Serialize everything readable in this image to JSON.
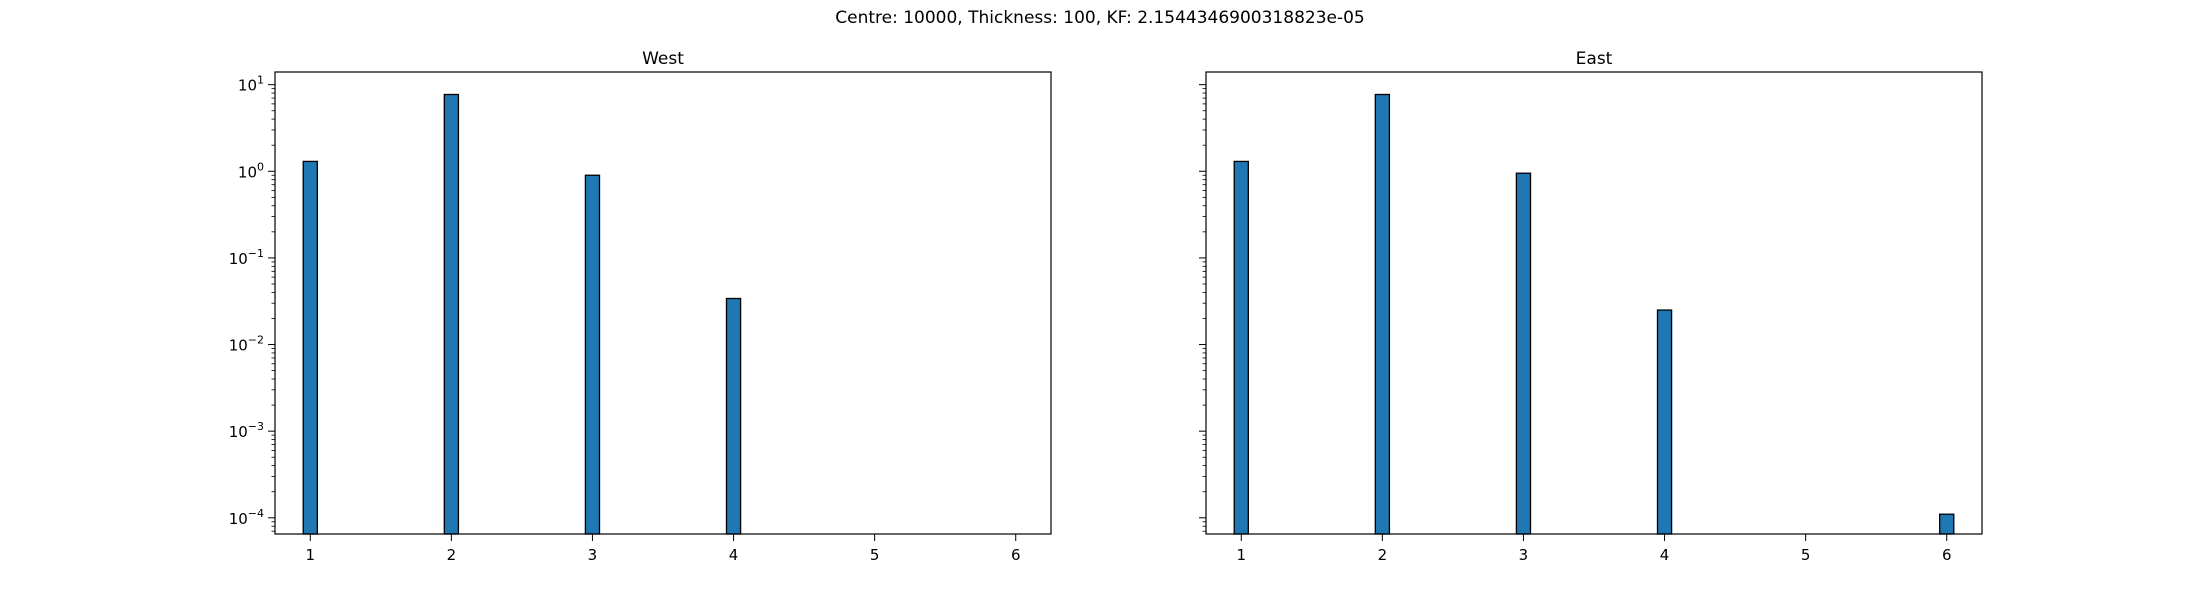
{
  "figure": {
    "suptitle": "Centre: 10000, Thickness: 100, KF: 2.1544346900318823e-05"
  },
  "chart_data": [
    {
      "type": "bar",
      "title": "West",
      "xlabel": "",
      "ylabel": "",
      "yscale": "log",
      "ylim": [
        6.5e-05,
        14
      ],
      "xlim": [
        0.75,
        6.25
      ],
      "xticks": [
        "1",
        "2",
        "3",
        "4",
        "5",
        "6"
      ],
      "yticks": [
        {
          "value": 0.0001,
          "base": "10",
          "exp": "−4"
        },
        {
          "value": 0.001,
          "base": "10",
          "exp": "−3"
        },
        {
          "value": 0.01,
          "base": "10",
          "exp": "−2"
        },
        {
          "value": 0.1,
          "base": "10",
          "exp": "−1"
        },
        {
          "value": 1,
          "base": "10",
          "exp": "0"
        },
        {
          "value": 10,
          "base": "10",
          "exp": "1"
        }
      ],
      "x": [
        1,
        2,
        3,
        4
      ],
      "values": [
        1.3,
        7.7,
        0.9,
        0.034
      ],
      "bar_width": 0.1,
      "color": "#1f77b4",
      "edgecolor": "#000000",
      "grid": false,
      "show_yticklabels": true
    },
    {
      "type": "bar",
      "title": "East",
      "xlabel": "",
      "ylabel": "",
      "yscale": "log",
      "ylim": [
        6.5e-05,
        14
      ],
      "xlim": [
        0.75,
        6.25
      ],
      "xticks": [
        "1",
        "2",
        "3",
        "4",
        "5",
        "6"
      ],
      "yticks": [
        {
          "value": 0.0001,
          "base": "10",
          "exp": "−4"
        },
        {
          "value": 0.001,
          "base": "10",
          "exp": "−3"
        },
        {
          "value": 0.01,
          "base": "10",
          "exp": "−2"
        },
        {
          "value": 0.1,
          "base": "10",
          "exp": "−1"
        },
        {
          "value": 1,
          "base": "10",
          "exp": "0"
        },
        {
          "value": 10,
          "base": "10",
          "exp": "1"
        }
      ],
      "x": [
        1,
        2,
        3,
        4,
        6
      ],
      "values": [
        1.3,
        7.7,
        0.95,
        0.025,
        0.00011
      ],
      "bar_width": 0.1,
      "color": "#1f77b4",
      "edgecolor": "#000000",
      "grid": false,
      "show_yticklabels": false
    }
  ]
}
